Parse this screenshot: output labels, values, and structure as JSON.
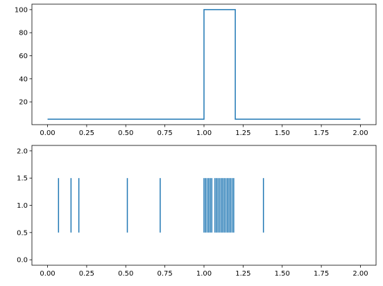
{
  "chart_data": [
    {
      "type": "line",
      "step": true,
      "title": "",
      "xlabel": "",
      "ylabel": "",
      "color": "#1f77b4",
      "xlim": [
        -0.1,
        2.1
      ],
      "ylim": [
        0.25,
        104.75
      ],
      "x_ticks": [
        "0.00",
        "0.25",
        "0.50",
        "0.75",
        "1.00",
        "1.25",
        "1.50",
        "1.75",
        "2.00"
      ],
      "y_ticks": [
        "20",
        "40",
        "60",
        "80",
        "100"
      ],
      "x": [
        0.0,
        1.0,
        1.0,
        1.2,
        1.2,
        2.0
      ],
      "y": [
        5,
        5,
        100,
        100,
        5,
        5
      ],
      "grid": false
    },
    {
      "type": "eventplot",
      "title": "",
      "xlabel": "",
      "ylabel": "",
      "color": "#1f77b4",
      "xlim": [
        -0.1,
        2.1
      ],
      "ylim": [
        -0.1,
        2.1
      ],
      "x_ticks": [
        "0.00",
        "0.25",
        "0.50",
        "0.75",
        "1.00",
        "1.25",
        "1.50",
        "1.75",
        "2.00"
      ],
      "y_ticks": [
        "0.0",
        "0.5",
        "1.0",
        "1.5",
        "2.0"
      ],
      "line_offset": 1.0,
      "line_length": 1.0,
      "events": [
        0.07,
        0.15,
        0.2,
        0.51,
        0.72,
        1.0,
        1.01,
        1.02,
        1.03,
        1.04,
        1.05,
        1.07,
        1.08,
        1.09,
        1.1,
        1.11,
        1.12,
        1.13,
        1.14,
        1.15,
        1.16,
        1.17,
        1.18,
        1.19,
        1.38
      ],
      "grid": false
    }
  ]
}
